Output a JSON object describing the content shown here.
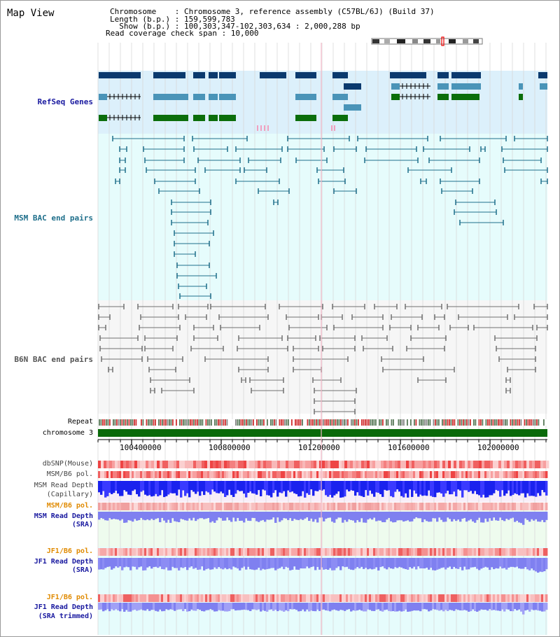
{
  "page_title": "Map View",
  "header": {
    "chromosome_label": "Chromosome    : Chromosome 3, reference assembly (C57BL/6J) (Build 37)",
    "length_label": "Length (b.p.) : 159,599,783",
    "show_label": "  Show (b.p.) : 100,303,347-102,303,634 : 2,000,288 bp",
    "coverage_label": "Read coverage check span : 10,000"
  },
  "tracks": {
    "refseq": "RefSeq Genes",
    "msm_bac": "MSM BAC end pairs",
    "b6n_bac": "B6N BAC end pairs",
    "repeat": "Repeat",
    "chromosome": "chromosome 3",
    "dbsnp": "dbSNP(Mouse)",
    "msm_b6_pol_1": "MSM/B6 pol.",
    "msm_depth_cap_1": "MSM Read Depth",
    "msm_depth_cap_2": "(Capillary)",
    "msm_b6_pol_2": "MSM/B6 pol.",
    "msm_depth_sra_1": "MSM Read Depth",
    "msm_depth_sra_2": "(SRA)",
    "jf1_b6_pol_1": "JF1/B6 pol.",
    "jf1_depth_sra_1": "JF1 Read Depth",
    "jf1_depth_sra_2": "(SRA)",
    "jf1_b6_pol_2": "JF1/B6 pol.",
    "jf1_depth_trim_1": "JF1 Read Depth",
    "jf1_depth_trim_2": "(SRA trimmed)"
  },
  "ruler": {
    "ticks": [
      "100400000",
      "100800000",
      "101200000",
      "101600000",
      "102000000"
    ]
  },
  "colors": {
    "refseq_bg": "#dcf0fb",
    "msm_bg": "#e6fcfc",
    "b6n_bg": "#f6f6f6",
    "gene_dark": "#0b3a6e",
    "gene_mid": "#4a94b8",
    "gene_green": "#0b6e0b",
    "msm_pair": "#1f6f8b",
    "b6n_pair": "#707070",
    "chromosome": "#0a6a0a",
    "depth_cap": "#1a22ee",
    "depth_sra": "#7f80f0",
    "pol_label": "#e08a00",
    "track_label": "#1a1aa0"
  }
}
